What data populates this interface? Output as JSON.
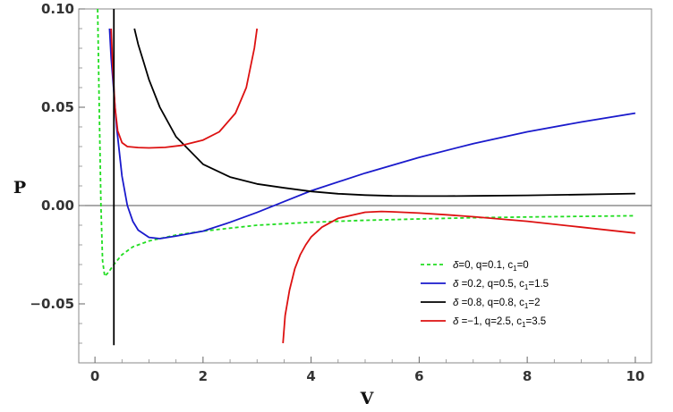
{
  "chart_data": {
    "type": "line",
    "title": "",
    "xlabel": "V",
    "ylabel": "P",
    "xlim": [
      -0.3,
      10.3
    ],
    "ylim": [
      -0.08,
      0.1
    ],
    "x_ticks": [
      0,
      2,
      4,
      6,
      8,
      10
    ],
    "x_tick_labels": [
      "0",
      "2",
      "4",
      "6",
      "8",
      "10"
    ],
    "y_ticks": [
      -0.05,
      0.0,
      0.05,
      0.1
    ],
    "y_tick_labels": [
      "-0.05",
      "0.00",
      "0.05",
      "0.10"
    ],
    "zero_line": true,
    "grid": false,
    "legend_position": "lower-right",
    "series": [
      {
        "name": "δ=0, q=0.1, c₁=0",
        "legend_parts": [
          "δ",
          "=0, q=0.1, c",
          "1",
          "=0"
        ],
        "color": "#22dd22",
        "dashed": true,
        "x": [
          0.05,
          0.08,
          0.11,
          0.14,
          0.18,
          0.25,
          0.35,
          0.5,
          0.7,
          1.0,
          1.5,
          2.0,
          3.0,
          4.0,
          5.0,
          6.0,
          7.0,
          8.0,
          9.0,
          10.0
        ],
        "y": [
          0.1,
          0.05,
          0.0,
          -0.028,
          -0.036,
          -0.034,
          -0.03,
          -0.025,
          -0.021,
          -0.018,
          -0.015,
          -0.013,
          -0.01,
          -0.0085,
          -0.0075,
          -0.0068,
          -0.0062,
          -0.0058,
          -0.0055,
          -0.0052
        ]
      },
      {
        "name": "δ=0.2, q=0.5, c₁=1.5",
        "legend_parts": [
          "δ",
          " =0.2, q=0.5, c",
          "1",
          "=1.5"
        ],
        "color": "#1a1acc",
        "dashed": false,
        "x": [
          0.27,
          0.3,
          0.35,
          0.4,
          0.5,
          0.6,
          0.7,
          0.8,
          1.0,
          1.2,
          1.5,
          2.0,
          2.5,
          3.0,
          3.5,
          4.0,
          5.0,
          6.0,
          7.0,
          8.0,
          9.0,
          10.0
        ],
        "y": [
          0.09,
          0.075,
          0.058,
          0.04,
          0.015,
          0.0,
          -0.008,
          -0.0125,
          -0.0162,
          -0.0168,
          -0.0155,
          -0.013,
          -0.0085,
          -0.0035,
          0.002,
          0.0075,
          0.0165,
          0.0245,
          0.0315,
          0.0375,
          0.0425,
          0.047
        ]
      },
      {
        "name": "δ=0.8, q=0.8, c₁=2",
        "legend_parts": [
          "δ",
          " =0.8, q=0.8, c",
          "1",
          "=2"
        ],
        "color": "#000000",
        "dashed": false,
        "x": [
          0.73,
          0.8,
          0.9,
          1.0,
          1.2,
          1.5,
          2.0,
          2.5,
          3.0,
          3.5,
          4.0,
          4.5,
          5.0,
          5.5,
          6.0,
          6.5,
          7.0,
          8.0,
          9.0,
          10.0
        ],
        "y": [
          0.09,
          0.082,
          0.073,
          0.064,
          0.05,
          0.035,
          0.021,
          0.0145,
          0.011,
          0.009,
          0.0072,
          0.006,
          0.0053,
          0.0049,
          0.0048,
          0.0048,
          0.0049,
          0.0052,
          0.0056,
          0.0061
        ]
      },
      {
        "name": "δ=-1, q=2.5, c₁=3.5",
        "legend_parts": [
          "δ",
          " =−1, q=2.5, c",
          "1",
          "=3.5"
        ],
        "color": "#dd1111",
        "dashed": false,
        "x": [
          0.3,
          0.33,
          0.37,
          0.42,
          0.5,
          0.6,
          0.8,
          1.0,
          1.3,
          1.6,
          2.0,
          2.3,
          2.6,
          2.8,
          2.95,
          3.0
        ],
        "y": [
          0.09,
          0.07,
          0.05,
          0.038,
          0.032,
          0.03,
          0.0295,
          0.0293,
          0.0296,
          0.0306,
          0.0333,
          0.0375,
          0.047,
          0.06,
          0.08,
          0.09
        ],
        "x2": [
          3.48,
          3.52,
          3.6,
          3.7,
          3.8,
          3.9,
          4.0,
          4.2,
          4.5,
          5.0,
          5.3,
          5.5,
          6.0,
          6.5,
          7.0,
          8.0,
          9.0,
          10.0
        ],
        "y2": [
          -0.07,
          -0.056,
          -0.043,
          -0.032,
          -0.025,
          -0.02,
          -0.016,
          -0.011,
          -0.0065,
          -0.0034,
          -0.003,
          -0.0032,
          -0.0038,
          -0.0047,
          -0.0057,
          -0.008,
          -0.011,
          -0.014
        ]
      }
    ],
    "vertical_lines": [
      {
        "x": 0.35,
        "y_from": -0.071,
        "y_to": 0.1,
        "color": "#000000"
      }
    ]
  }
}
